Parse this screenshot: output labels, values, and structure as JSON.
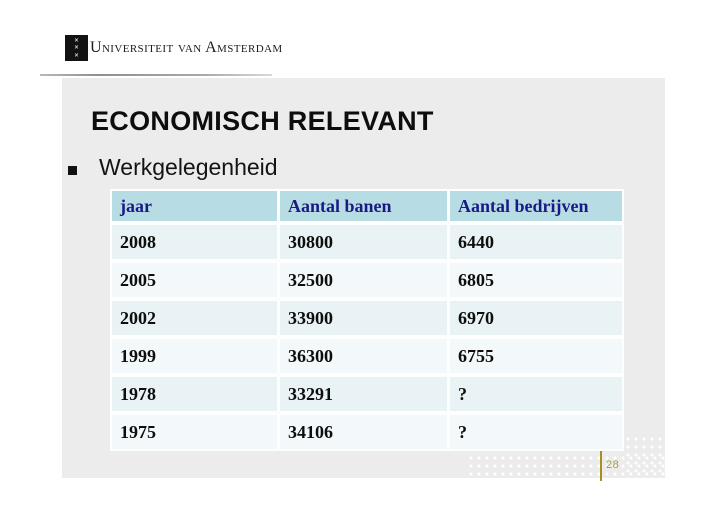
{
  "slide": {
    "institution": "Universiteit van Amsterdam",
    "crest": [
      "✕",
      "✕",
      "✕"
    ],
    "title": "ECONOMISCH RELEVANT",
    "bullet_item": "Werkgelegenheid",
    "page_number": "28",
    "table": {
      "headers": [
        "jaar",
        "Aantal banen",
        "Aantal bedrijven"
      ],
      "rows": [
        [
          "2008",
          "30800",
          "6440"
        ],
        [
          "2005",
          "32500",
          "6805"
        ],
        [
          "2002",
          "33900",
          "6970"
        ],
        [
          "1999",
          "36300",
          "6755"
        ],
        [
          "1978",
          "33291",
          "?"
        ],
        [
          "1975",
          "34106",
          "?"
        ]
      ]
    },
    "colors": {
      "panel_bg": "#ececec",
      "table_header_bg": "#b8dce4",
      "table_header_text": "#1a1a86",
      "row_shade_dark": "#e9f3f5",
      "row_shade_light": "#f3f9fa",
      "accent_gold": "#a8901f",
      "title_text": "#0d0d0d"
    }
  }
}
